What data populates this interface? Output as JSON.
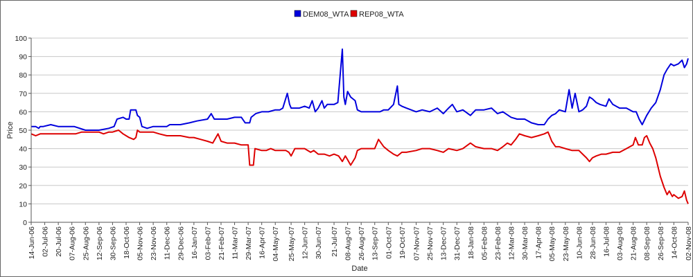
{
  "chart_data": {
    "type": "line",
    "xlabel": "Date",
    "ylabel": "Price",
    "ylim": [
      0,
      100
    ],
    "yticks": [
      0,
      10,
      20,
      30,
      40,
      50,
      60,
      70,
      80,
      90,
      100
    ],
    "grid": "horizontal",
    "legend_position": "top-center",
    "x_tick_labels": [
      "14-Jun-06",
      "02-Jul-06",
      "20-Jul-06",
      "07-Aug-06",
      "25-Aug-06",
      "12-Sep-06",
      "30-Sep-06",
      "18-Oct-06",
      "05-Nov-06",
      "23-Nov-06",
      "11-Dec-06",
      "29-Dec-06",
      "16-Jan-07",
      "03-Feb-07",
      "21-Feb-07",
      "11-Mar-07",
      "29-Mar-07",
      "16-Apr-07",
      "04-May-07",
      "25-May-07",
      "12-Jun-07",
      "30-Jun-07",
      "21-Jul-07",
      "08-Aug-07",
      "26-Aug-07",
      "13-Sep-07",
      "01-Oct-07",
      "19-Oct-07",
      "07-Nov-07",
      "25-Nov-07",
      "13-Dec-07",
      "31-Dec-07",
      "18-Jan-08",
      "05-Feb-08",
      "23-Feb-08",
      "12-Mar-08",
      "30-Mar-08",
      "17-Apr-08",
      "05-May-08",
      "23-May-08",
      "10-Jun-08",
      "28-Jun-08",
      "16-Jul-08",
      "03-Aug-08",
      "21-Aug-08",
      "08-Sep-08",
      "26-Sep-08",
      "14-Oct-08",
      "02-Nov-08"
    ],
    "series": [
      {
        "name": "DEM08_WTA",
        "color": "#0000dd",
        "values": [
          [
            "14-Jun-06",
            52
          ],
          [
            "20-Jun-06",
            52
          ],
          [
            "24-Jun-06",
            51
          ],
          [
            "26-Jun-06",
            52
          ],
          [
            "30-Jun-06",
            52
          ],
          [
            "10-Jul-06",
            53
          ],
          [
            "20-Jul-06",
            52
          ],
          [
            "01-Aug-06",
            52
          ],
          [
            "10-Aug-06",
            52
          ],
          [
            "25-Aug-06",
            50
          ],
          [
            "12-Sep-06",
            50
          ],
          [
            "25-Sep-06",
            51
          ],
          [
            "02-Oct-06",
            52
          ],
          [
            "06-Oct-06",
            56
          ],
          [
            "14-Oct-06",
            57
          ],
          [
            "18-Oct-06",
            56
          ],
          [
            "22-Oct-06",
            56
          ],
          [
            "24-Oct-06",
            61
          ],
          [
            "31-Oct-06",
            61
          ],
          [
            "02-Nov-06",
            58
          ],
          [
            "05-Nov-06",
            57
          ],
          [
            "08-Nov-06",
            52
          ],
          [
            "15-Nov-06",
            51
          ],
          [
            "23-Nov-06",
            52
          ],
          [
            "05-Dec-06",
            52
          ],
          [
            "11-Dec-06",
            52
          ],
          [
            "15-Dec-06",
            53
          ],
          [
            "29-Dec-06",
            53
          ],
          [
            "10-Jan-07",
            54
          ],
          [
            "20-Jan-07",
            55
          ],
          [
            "03-Feb-07",
            56
          ],
          [
            "08-Feb-07",
            59
          ],
          [
            "12-Feb-07",
            56
          ],
          [
            "21-Feb-07",
            56
          ],
          [
            "01-Mar-07",
            56
          ],
          [
            "11-Mar-07",
            57
          ],
          [
            "20-Mar-07",
            57
          ],
          [
            "25-Mar-07",
            54
          ],
          [
            "31-Mar-07",
            54
          ],
          [
            "02-Apr-07",
            57
          ],
          [
            "08-Apr-07",
            59
          ],
          [
            "16-Apr-07",
            60
          ],
          [
            "25-Apr-07",
            60
          ],
          [
            "04-May-07",
            61
          ],
          [
            "10-May-07",
            61
          ],
          [
            "14-May-07",
            62
          ],
          [
            "20-May-07",
            70
          ],
          [
            "23-May-07",
            64
          ],
          [
            "25-May-07",
            62
          ],
          [
            "05-Jun-07",
            62
          ],
          [
            "12-Jun-07",
            63
          ],
          [
            "18-Jun-07",
            62
          ],
          [
            "22-Jun-07",
            66
          ],
          [
            "26-Jun-07",
            60
          ],
          [
            "30-Jun-07",
            62
          ],
          [
            "05-Jul-07",
            66
          ],
          [
            "08-Jul-07",
            62
          ],
          [
            "12-Jul-07",
            64
          ],
          [
            "21-Jul-07",
            64
          ],
          [
            "26-Jul-07",
            65
          ],
          [
            "01-Aug-07",
            94
          ],
          [
            "03-Aug-07",
            68
          ],
          [
            "05-Aug-07",
            64
          ],
          [
            "08-Aug-07",
            71
          ],
          [
            "12-Aug-07",
            68
          ],
          [
            "18-Aug-07",
            66
          ],
          [
            "21-Aug-07",
            61
          ],
          [
            "26-Aug-07",
            60
          ],
          [
            "05-Sep-07",
            60
          ],
          [
            "13-Sep-07",
            60
          ],
          [
            "20-Sep-07",
            60
          ],
          [
            "25-Sep-07",
            61
          ],
          [
            "01-Oct-07",
            61
          ],
          [
            "08-Oct-07",
            64
          ],
          [
            "13-Oct-07",
            74
          ],
          [
            "15-Oct-07",
            64
          ],
          [
            "19-Oct-07",
            63
          ],
          [
            "25-Oct-07",
            62
          ],
          [
            "07-Nov-07",
            60
          ],
          [
            "15-Nov-07",
            61
          ],
          [
            "25-Nov-07",
            60
          ],
          [
            "05-Dec-07",
            62
          ],
          [
            "13-Dec-07",
            59
          ],
          [
            "20-Dec-07",
            62
          ],
          [
            "25-Dec-07",
            64
          ],
          [
            "31-Dec-07",
            60
          ],
          [
            "08-Jan-08",
            61
          ],
          [
            "18-Jan-08",
            58
          ],
          [
            "25-Jan-08",
            61
          ],
          [
            "05-Feb-08",
            61
          ],
          [
            "15-Feb-08",
            62
          ],
          [
            "23-Feb-08",
            59
          ],
          [
            "01-Mar-08",
            60
          ],
          [
            "12-Mar-08",
            57
          ],
          [
            "20-Mar-08",
            56
          ],
          [
            "30-Mar-08",
            56
          ],
          [
            "08-Apr-08",
            54
          ],
          [
            "17-Apr-08",
            53
          ],
          [
            "25-Apr-08",
            53
          ],
          [
            "30-Apr-08",
            56
          ],
          [
            "05-May-08",
            58
          ],
          [
            "10-May-08",
            59
          ],
          [
            "15-May-08",
            61
          ],
          [
            "23-May-08",
            60
          ],
          [
            "28-May-08",
            72
          ],
          [
            "01-Jun-08",
            62
          ],
          [
            "05-Jun-08",
            70
          ],
          [
            "10-Jun-08",
            60
          ],
          [
            "15-Jun-08",
            61
          ],
          [
            "20-Jun-08",
            63
          ],
          [
            "24-Jun-08",
            68
          ],
          [
            "28-Jun-08",
            67
          ],
          [
            "03-Jul-08",
            65
          ],
          [
            "08-Jul-08",
            64
          ],
          [
            "16-Jul-08",
            63
          ],
          [
            "20-Jul-08",
            67
          ],
          [
            "25-Jul-08",
            64
          ],
          [
            "03-Aug-08",
            62
          ],
          [
            "12-Aug-08",
            62
          ],
          [
            "21-Aug-08",
            60
          ],
          [
            "25-Aug-08",
            60
          ],
          [
            "29-Aug-08",
            56
          ],
          [
            "02-Sep-08",
            53
          ],
          [
            "08-Sep-08",
            58
          ],
          [
            "14-Sep-08",
            62
          ],
          [
            "20-Sep-08",
            65
          ],
          [
            "26-Sep-08",
            72
          ],
          [
            "01-Oct-08",
            80
          ],
          [
            "05-Oct-08",
            83
          ],
          [
            "10-Oct-08",
            86
          ],
          [
            "14-Oct-08",
            85
          ],
          [
            "20-Oct-08",
            86
          ],
          [
            "25-Oct-08",
            88
          ],
          [
            "28-Oct-08",
            84
          ],
          [
            "31-Oct-08",
            86
          ],
          [
            "02-Nov-08",
            89
          ]
        ]
      },
      {
        "name": "REP08_WTA",
        "color": "#dd0000",
        "values": [
          [
            "14-Jun-06",
            48
          ],
          [
            "20-Jun-06",
            47
          ],
          [
            "26-Jun-06",
            48
          ],
          [
            "02-Jul-06",
            48
          ],
          [
            "20-Jul-06",
            48
          ],
          [
            "07-Aug-06",
            48
          ],
          [
            "12-Aug-06",
            48
          ],
          [
            "20-Aug-06",
            49
          ],
          [
            "25-Aug-06",
            49
          ],
          [
            "05-Sep-06",
            49
          ],
          [
            "12-Sep-06",
            49
          ],
          [
            "18-Sep-06",
            48
          ],
          [
            "25-Sep-06",
            49
          ],
          [
            "30-Sep-06",
            49
          ],
          [
            "08-Oct-06",
            50
          ],
          [
            "14-Oct-06",
            48
          ],
          [
            "18-Oct-06",
            47
          ],
          [
            "22-Oct-06",
            46
          ],
          [
            "28-Oct-06",
            45
          ],
          [
            "31-Oct-06",
            46
          ],
          [
            "02-Nov-06",
            50
          ],
          [
            "05-Nov-06",
            49
          ],
          [
            "12-Nov-06",
            49
          ],
          [
            "23-Nov-06",
            49
          ],
          [
            "01-Dec-06",
            48
          ],
          [
            "11-Dec-06",
            47
          ],
          [
            "29-Dec-06",
            47
          ],
          [
            "10-Jan-07",
            46
          ],
          [
            "16-Jan-07",
            46
          ],
          [
            "25-Jan-07",
            45
          ],
          [
            "03-Feb-07",
            44
          ],
          [
            "10-Feb-07",
            43
          ],
          [
            "17-Feb-07",
            48
          ],
          [
            "21-Feb-07",
            44
          ],
          [
            "01-Mar-07",
            43
          ],
          [
            "11-Mar-07",
            43
          ],
          [
            "20-Mar-07",
            42
          ],
          [
            "25-Mar-07",
            42
          ],
          [
            "29-Mar-07",
            42
          ],
          [
            "31-Mar-07",
            31
          ],
          [
            "05-Apr-07",
            31
          ],
          [
            "07-Apr-07",
            40
          ],
          [
            "16-Apr-07",
            39
          ],
          [
            "22-Apr-07",
            39
          ],
          [
            "28-Apr-07",
            40
          ],
          [
            "04-May-07",
            39
          ],
          [
            "12-May-07",
            39
          ],
          [
            "18-May-07",
            39
          ],
          [
            "22-May-07",
            38
          ],
          [
            "25-May-07",
            36
          ],
          [
            "30-May-07",
            40
          ],
          [
            "05-Jun-07",
            40
          ],
          [
            "12-Jun-07",
            40
          ],
          [
            "20-Jun-07",
            38
          ],
          [
            "24-Jun-07",
            39
          ],
          [
            "30-Jun-07",
            37
          ],
          [
            "08-Jul-07",
            37
          ],
          [
            "15-Jul-07",
            36
          ],
          [
            "21-Jul-07",
            37
          ],
          [
            "27-Jul-07",
            36
          ],
          [
            "01-Aug-07",
            33
          ],
          [
            "05-Aug-07",
            36
          ],
          [
            "08-Aug-07",
            34
          ],
          [
            "12-Aug-07",
            31
          ],
          [
            "18-Aug-07",
            35
          ],
          [
            "21-Aug-07",
            39
          ],
          [
            "26-Aug-07",
            40
          ],
          [
            "05-Sep-07",
            40
          ],
          [
            "13-Sep-07",
            40
          ],
          [
            "18-Sep-07",
            45
          ],
          [
            "25-Sep-07",
            41
          ],
          [
            "01-Oct-07",
            39
          ],
          [
            "08-Oct-07",
            37
          ],
          [
            "13-Oct-07",
            36
          ],
          [
            "19-Oct-07",
            38
          ],
          [
            "25-Oct-07",
            38
          ],
          [
            "07-Nov-07",
            39
          ],
          [
            "15-Nov-07",
            40
          ],
          [
            "25-Nov-07",
            40
          ],
          [
            "05-Dec-07",
            39
          ],
          [
            "13-Dec-07",
            38
          ],
          [
            "20-Dec-07",
            40
          ],
          [
            "31-Dec-07",
            39
          ],
          [
            "08-Jan-08",
            40
          ],
          [
            "18-Jan-08",
            43
          ],
          [
            "25-Jan-08",
            41
          ],
          [
            "05-Feb-08",
            40
          ],
          [
            "15-Feb-08",
            40
          ],
          [
            "23-Feb-08",
            39
          ],
          [
            "01-Mar-08",
            41
          ],
          [
            "07-Mar-08",
            43
          ],
          [
            "12-Mar-08",
            42
          ],
          [
            "18-Mar-08",
            45
          ],
          [
            "23-Mar-08",
            48
          ],
          [
            "30-Mar-08",
            47
          ],
          [
            "08-Apr-08",
            46
          ],
          [
            "17-Apr-08",
            47
          ],
          [
            "25-Apr-08",
            48
          ],
          [
            "30-Apr-08",
            49
          ],
          [
            "02-May-08",
            47
          ],
          [
            "05-May-08",
            44
          ],
          [
            "10-May-08",
            41
          ],
          [
            "15-May-08",
            41
          ],
          [
            "23-May-08",
            40
          ],
          [
            "01-Jun-08",
            39
          ],
          [
            "10-Jun-08",
            39
          ],
          [
            "15-Jun-08",
            37
          ],
          [
            "20-Jun-08",
            35
          ],
          [
            "24-Jun-08",
            33
          ],
          [
            "28-Jun-08",
            35
          ],
          [
            "03-Jul-08",
            36
          ],
          [
            "10-Jul-08",
            37
          ],
          [
            "16-Jul-08",
            37
          ],
          [
            "25-Jul-08",
            38
          ],
          [
            "03-Aug-08",
            38
          ],
          [
            "12-Aug-08",
            40
          ],
          [
            "21-Aug-08",
            42
          ],
          [
            "24-Aug-08",
            46
          ],
          [
            "28-Aug-08",
            42
          ],
          [
            "02-Sep-08",
            42
          ],
          [
            "05-Sep-08",
            46
          ],
          [
            "08-Sep-08",
            47
          ],
          [
            "12-Sep-08",
            43
          ],
          [
            "16-Sep-08",
            40
          ],
          [
            "20-Sep-08",
            35
          ],
          [
            "26-Sep-08",
            25
          ],
          [
            "01-Oct-08",
            19
          ],
          [
            "05-Oct-08",
            15
          ],
          [
            "08-Oct-08",
            17
          ],
          [
            "12-Oct-08",
            14
          ],
          [
            "14-Oct-08",
            15
          ],
          [
            "20-Oct-08",
            13
          ],
          [
            "25-Oct-08",
            14
          ],
          [
            "28-Oct-08",
            17
          ],
          [
            "31-Oct-08",
            12
          ],
          [
            "02-Nov-08",
            10
          ]
        ]
      }
    ]
  }
}
